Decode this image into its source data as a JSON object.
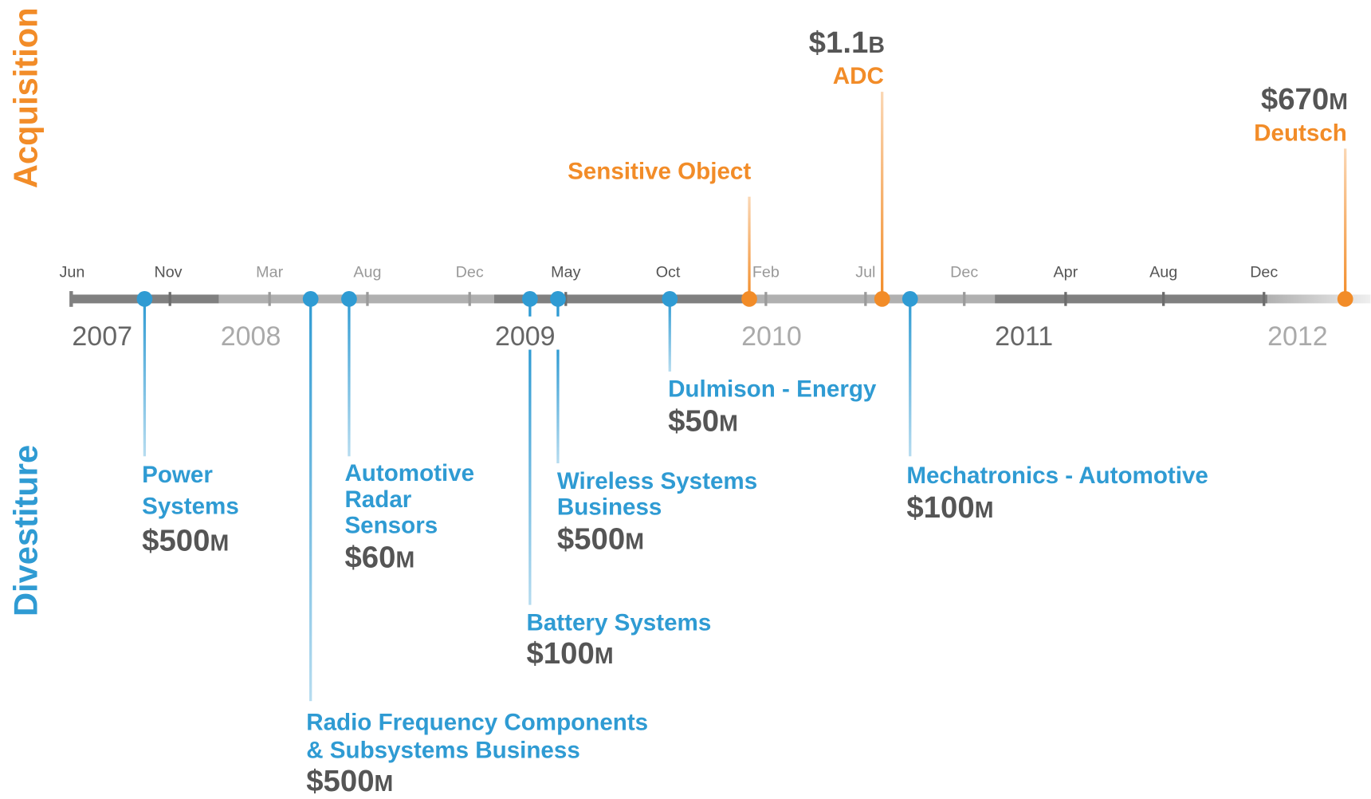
{
  "side_labels": {
    "acquisition": "Acquisition",
    "divestiture": "Divestiture"
  },
  "months": [
    "Jun",
    "Nov",
    "Mar",
    "Aug",
    "Dec",
    "May",
    "Oct",
    "Feb",
    "Jul",
    "Dec",
    "Apr",
    "Aug",
    "Dec"
  ],
  "years": [
    "2007",
    "2008",
    "2009",
    "2010",
    "2011",
    "2012"
  ],
  "acquisitions": [
    {
      "label": "Sensitive Object"
    },
    {
      "amount": "$1.1",
      "unit": "B",
      "label": "ADC"
    },
    {
      "amount": "$670",
      "unit": "M",
      "label": "Deutsch"
    }
  ],
  "divestitures": [
    {
      "label_lines": [
        "Power",
        "Systems"
      ],
      "amount": "$500",
      "unit": "M"
    },
    {
      "label_lines": [
        "Radio Frequency Components",
        "& Subsystems Business"
      ],
      "amount": "$500",
      "unit": "M"
    },
    {
      "label_lines": [
        "Automotive",
        "Radar",
        "Sensors"
      ],
      "amount": "$60",
      "unit": "M"
    },
    {
      "label_lines": [
        "Battery Systems"
      ],
      "amount": "$100",
      "unit": "M"
    },
    {
      "label_lines": [
        "Wireless Systems",
        "Business"
      ],
      "amount": "$500",
      "unit": "M"
    },
    {
      "label_lines": [
        "Dulmison - Energy"
      ],
      "amount": "$50",
      "unit": "M"
    },
    {
      "label_lines": [
        "Mechatronics - Automotive"
      ],
      "amount": "$100",
      "unit": "M"
    }
  ]
}
